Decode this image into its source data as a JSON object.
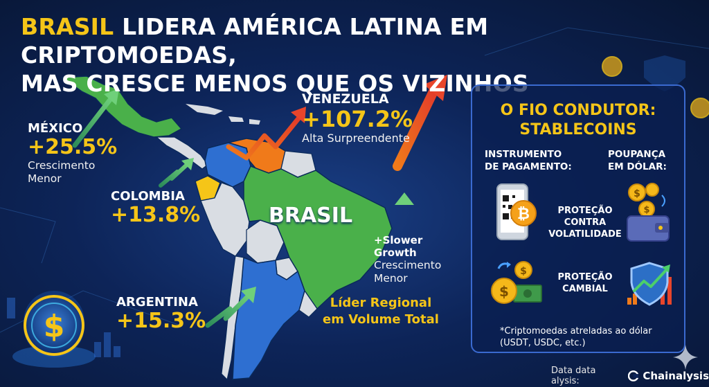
{
  "title": {
    "highlight": "BRASIL",
    "line1_rest": "LIDERA AMÉRICA LATINA EM CRIPTOMOEDAS,",
    "line2": "MAS CRESCE MENOS QUE OS VIZINHOS"
  },
  "countries": {
    "mexico": {
      "name": "MÉXICO",
      "pct": "+25.5%",
      "sub1": "Crescimento",
      "sub2": "Menor"
    },
    "venezuela": {
      "name": "VENEZUELA",
      "pct": "+107.2%",
      "sub": "Alta Surpreendente"
    },
    "colombia": {
      "name": "COLOMBIA",
      "pct": "+13.8%"
    },
    "argentina": {
      "name": "ARGENTINA",
      "pct": "+15.3%"
    },
    "brasil": {
      "name": "BRASIL",
      "growth1": "+Slower",
      "growth2": "Growth",
      "sub1": "Crescimento",
      "sub2": "Menor",
      "leader1": "Líder Regional",
      "leader2": "em Volume Total"
    }
  },
  "panel": {
    "title1": "O FIO CONDUTOR:",
    "title2": "STABLECOINS",
    "col1a": "INSTRUMENTO",
    "col1b": "DE PAGAMENTO:",
    "col2a": "POUPANÇA",
    "col2b": "EM DÓLAR:",
    "vol1": "PROTEÇÃO",
    "vol2": "CONTRA",
    "vol3": "VOLATILIDADE",
    "camb1": "PROTEÇÃO",
    "camb2": "CAMBIAL",
    "foot1": "*Criptomoedas atreladas ao dólar",
    "foot2": "(USDT, USDC, etc.)"
  },
  "credit": {
    "text": "Data data alysis:",
    "brand": "Chainalysis"
  },
  "colors": {
    "accent": "#f5c518",
    "green": "#4caf3c",
    "red": "#e8452b",
    "panel_border": "#3a6ad0"
  },
  "icons": [
    "dollar-coin-icon",
    "phone-qr-bitcoin-icon",
    "wallet-coins-icon",
    "coins-cash-icon",
    "shield-chart-icon",
    "sparkle-icon"
  ]
}
